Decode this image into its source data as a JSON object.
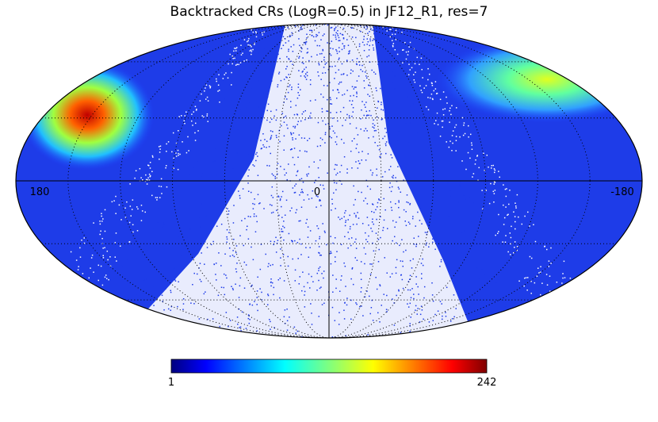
{
  "title": "Backtracked CRs (LogR=0.5) in JF12_R1, res=7",
  "longitude_labels": {
    "left": "180",
    "center": "0",
    "right": "-180"
  },
  "colorbar": {
    "min": 1,
    "max": 242
  }
}
